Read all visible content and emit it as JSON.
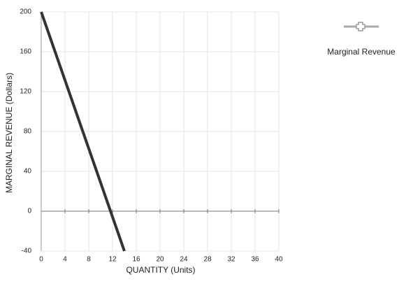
{
  "chart_data": {
    "type": "line",
    "x_label": "QUANTITY (Units)",
    "y_label": "MARGINAL REVENUE (Dollars)",
    "x": [
      0,
      14
    ],
    "series": [
      {
        "name": "Marginal Revenue",
        "color": "#333333",
        "values": [
          200,
          -40
        ]
      }
    ],
    "xlim": [
      0,
      40
    ],
    "xticks": [
      0,
      4,
      8,
      12,
      16,
      20,
      24,
      28,
      32,
      36,
      40
    ],
    "ylim": [
      -40,
      200
    ],
    "yticks": [
      -40,
      0,
      40,
      80,
      120,
      160,
      200
    ],
    "grid": true
  }
}
